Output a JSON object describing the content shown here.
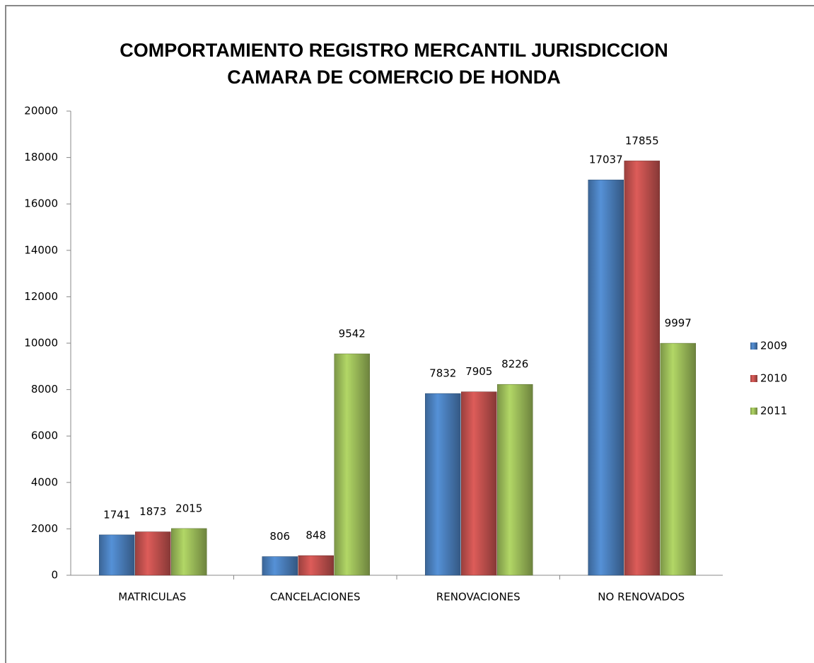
{
  "chart_data": {
    "type": "bar",
    "title": [
      "COMPORTAMIENTO REGISTRO MERCANTIL JURISDICCION",
      "CAMARA DE COMERCIO DE HONDA"
    ],
    "categories": [
      "MATRICULAS",
      "CANCELACIONES",
      "RENOVACIONES",
      "NO RENOVADOS"
    ],
    "series": [
      {
        "name": "2009",
        "color": "#4a7ebb",
        "values": [
          1741,
          806,
          7832,
          17037
        ]
      },
      {
        "name": "2010",
        "color": "#c0504d",
        "values": [
          1873,
          848,
          7905,
          17855
        ]
      },
      {
        "name": "2011",
        "color": "#9bbb59",
        "values": [
          2015,
          9542,
          8226,
          9997
        ]
      }
    ],
    "ylim": [
      0,
      20000
    ],
    "yticks": [
      0,
      2000,
      4000,
      6000,
      8000,
      10000,
      12000,
      14000,
      16000,
      18000,
      20000
    ],
    "grid": false,
    "legend": "right"
  }
}
